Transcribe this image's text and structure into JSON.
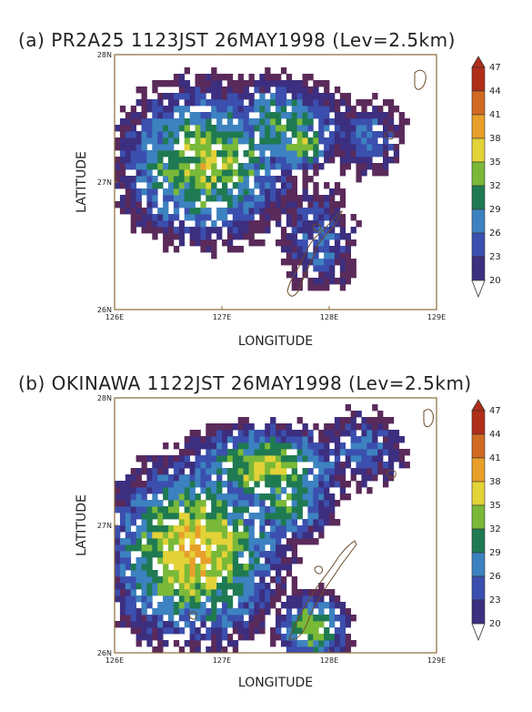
{
  "chart_data": [
    {
      "type": "heatmap",
      "title": "(a)  PR2A25  1123JST  26MAY1998  (Lev=2.5km)",
      "xlabel": "LONGITUDE",
      "ylabel": "LATITUDE",
      "xticks": [
        "126E",
        "127E",
        "128E",
        "129E"
      ],
      "yticks": [
        "28N",
        "27N",
        "26N"
      ],
      "xlim": [
        126,
        129
      ],
      "ylim": [
        26,
        28
      ],
      "colorbar": {
        "levels": [
          20,
          23,
          26,
          29,
          32,
          35,
          38,
          41,
          44,
          47
        ],
        "labels": [
          "47",
          "44",
          "41",
          "38",
          "35",
          "32",
          "29",
          "26",
          "23",
          "20"
        ]
      },
      "echo_regions": [
        {
          "lon": 126.85,
          "lat": 27.15,
          "rlon": 0.75,
          "rlat": 0.55,
          "peak": 38
        },
        {
          "lon": 127.55,
          "lat": 27.45,
          "rlon": 0.55,
          "rlat": 0.32,
          "peak": 35
        },
        {
          "lon": 127.75,
          "lat": 27.3,
          "rlon": 0.25,
          "rlat": 0.2,
          "peak": 38
        },
        {
          "lon": 127.9,
          "lat": 26.55,
          "rlon": 0.3,
          "rlat": 0.35,
          "peak": 29
        },
        {
          "lon": 128.35,
          "lat": 27.35,
          "rlon": 0.3,
          "rlat": 0.25,
          "peak": 29
        }
      ]
    },
    {
      "type": "heatmap",
      "title": "(b)  OKINAWA  1122JST  26MAY1998  (Lev=2.5km)",
      "xlabel": "LONGITUDE",
      "ylabel": "LATITUDE",
      "xticks": [
        "126E",
        "127E",
        "128E",
        "129E"
      ],
      "yticks": [
        "28N",
        "27N",
        "26N"
      ],
      "xlim": [
        126,
        129
      ],
      "ylim": [
        26,
        28
      ],
      "colorbar": {
        "levels": [
          20,
          23,
          26,
          29,
          32,
          35,
          38,
          41,
          44,
          47
        ],
        "labels": [
          "47",
          "44",
          "41",
          "38",
          "35",
          "32",
          "29",
          "26",
          "23",
          "20"
        ]
      },
      "echo_regions": [
        {
          "lon": 126.75,
          "lat": 26.8,
          "rlon": 0.75,
          "rlat": 0.65,
          "peak": 41
        },
        {
          "lon": 127.4,
          "lat": 27.45,
          "rlon": 0.7,
          "rlat": 0.3,
          "peak": 38
        },
        {
          "lon": 127.6,
          "lat": 27.2,
          "rlon": 0.4,
          "rlat": 0.3,
          "peak": 35
        },
        {
          "lon": 127.85,
          "lat": 26.2,
          "rlon": 0.3,
          "rlat": 0.25,
          "peak": 38
        },
        {
          "lon": 128.3,
          "lat": 27.6,
          "rlon": 0.35,
          "rlat": 0.25,
          "peak": 29
        }
      ]
    }
  ],
  "colors": {
    "bins": [
      "#5a2a5a",
      "#3c2f80",
      "#3b4fae",
      "#3d82c0",
      "#1f7a52",
      "#7ab938",
      "#e3d238",
      "#e89f2a",
      "#d06a22",
      "#b02e1a"
    ],
    "coast": "#6b4b2b"
  }
}
